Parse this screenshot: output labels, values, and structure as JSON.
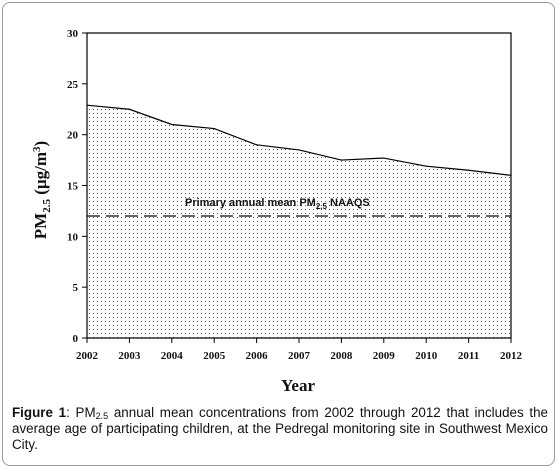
{
  "chart_data": {
    "type": "area",
    "x": [
      2002,
      2003,
      2004,
      2005,
      2006,
      2007,
      2008,
      2009,
      2010,
      2011,
      2012
    ],
    "series": [
      {
        "values": [
          22.9,
          22.5,
          21.0,
          20.6,
          19.0,
          18.5,
          17.5,
          17.7,
          16.9,
          16.5,
          16.0
        ]
      }
    ],
    "reference_line": {
      "value": 12,
      "label_pre": "Primary annual mean PM",
      "label_sub": "2.5",
      "label_post": " NAAQS",
      "style": "dashed"
    },
    "xlabel": "Year",
    "ylabel": {
      "main": "PM",
      "sub": "2.5",
      "unit_pre": " (µg/m",
      "unit_sup": "3",
      "unit_post": ")"
    },
    "xlim": [
      2002,
      2012
    ],
    "ylim": [
      0,
      30
    ],
    "yticks": [
      0,
      5,
      10,
      15,
      20,
      25,
      30
    ],
    "fill_pattern": "dotted",
    "grid": false,
    "line_color": "#000000",
    "fill_color": "#ffffff"
  },
  "caption": {
    "label": "Figure 1",
    "text_before_sub": ": PM",
    "sub": "2.5",
    "text_after_sub": " annual mean concentrations from 2002 through 2012 that includes the average age of participating children, at the Pedregal monitoring site in Southwest Mexico City."
  }
}
